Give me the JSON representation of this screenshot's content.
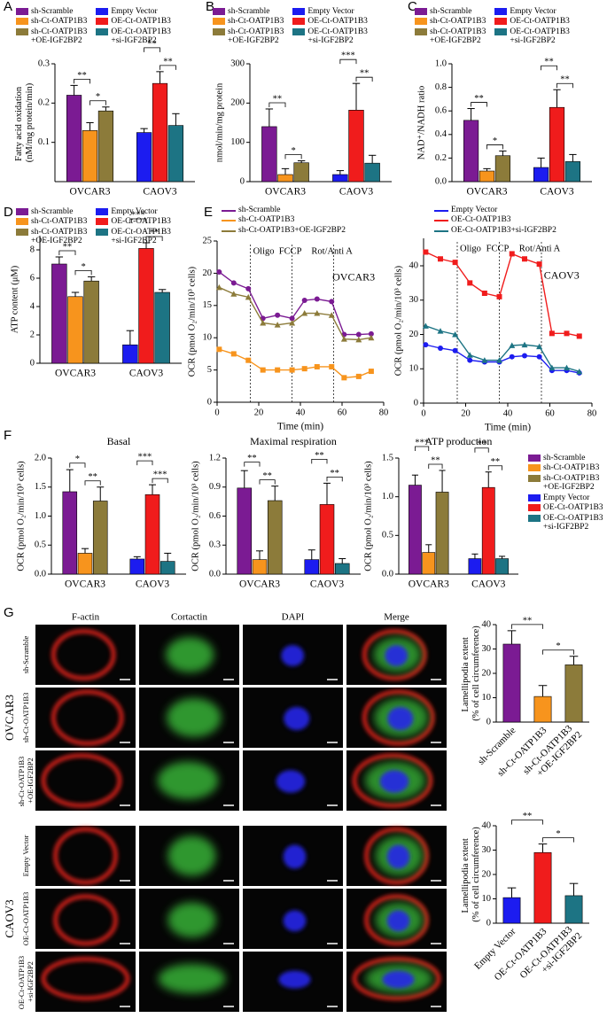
{
  "chart_data": [
    {
      "panel": "A",
      "type": "bar",
      "legend": "top",
      "ylabel": "Fatty acid oxidation\n(nM/mg protein/min)",
      "categories": [
        "OVCAR3",
        "CAOV3"
      ],
      "series": [
        {
          "name": "sh-Scramble",
          "color": "#7b1b93",
          "values": [
            0.22,
            null
          ],
          "errors": [
            0.025,
            null
          ]
        },
        {
          "name": "sh-Ct-OATP1B3",
          "color": "#f7941d",
          "values": [
            0.13,
            null
          ],
          "errors": [
            0.02,
            null
          ]
        },
        {
          "name": "sh-Ct-OATP1B3\n+OE-IGF2BP2",
          "color": "#8c7b3a",
          "values": [
            0.18,
            null
          ],
          "errors": [
            0.01,
            null
          ]
        },
        {
          "name": "Empty Vector",
          "color": "#1c1cf0",
          "values": [
            null,
            0.125
          ],
          "errors": [
            null,
            0.01
          ]
        },
        {
          "name": "OE-Ct-OATP1B3",
          "color": "#f01c1c",
          "values": [
            null,
            0.25
          ],
          "errors": [
            null,
            0.03
          ]
        },
        {
          "name": "OE-Ct-OATP1B3\n+si-IGF2BP2",
          "color": "#1d7484",
          "values": [
            null,
            0.143
          ],
          "errors": [
            null,
            0.03
          ]
        }
      ],
      "ylim": [
        0,
        0.3
      ],
      "yticks": [
        0.1,
        0.2,
        0.3
      ],
      "significance": [
        "**",
        "*",
        "**",
        "**"
      ]
    },
    {
      "panel": "B",
      "type": "bar",
      "legend": "top",
      "ylabel": "nmol/min/mg protein",
      "categories": [
        "OVCAR3",
        "CAOV3"
      ],
      "series": [
        {
          "name": "sh-Scramble",
          "color": "#7b1b93",
          "values": [
            140,
            null
          ],
          "errors": [
            45,
            null
          ]
        },
        {
          "name": "sh-Ct-OATP1B3",
          "color": "#f7941d",
          "values": [
            18,
            null
          ],
          "errors": [
            15,
            null
          ]
        },
        {
          "name": "sh-Ct-OATP1B3\n+OE-IGF2BP2",
          "color": "#8c7b3a",
          "values": [
            48,
            null
          ],
          "errors": [
            5,
            null
          ]
        },
        {
          "name": "Empty Vector",
          "color": "#1c1cf0",
          "values": [
            null,
            18
          ],
          "errors": [
            null,
            10
          ]
        },
        {
          "name": "OE-Ct-OATP1B3",
          "color": "#f01c1c",
          "values": [
            null,
            182
          ],
          "errors": [
            null,
            68
          ]
        },
        {
          "name": "OE-Ct-OATP1B3\n+si-IGF2BP2",
          "color": "#1d7484",
          "values": [
            null,
            47
          ],
          "errors": [
            null,
            20
          ]
        }
      ],
      "ylim": [
        0,
        300
      ],
      "yticks": [
        0,
        100,
        200,
        300
      ],
      "significance": [
        "**",
        "*",
        "***",
        "**"
      ]
    },
    {
      "panel": "C",
      "type": "bar",
      "legend": "top",
      "ylabel": "NAD⁺/NADH ratio",
      "categories": [
        "OVCAR3",
        "CAOV3"
      ],
      "series": [
        {
          "name": "sh-Scramble",
          "color": "#7b1b93",
          "values": [
            0.52,
            null
          ],
          "errors": [
            0.1,
            null
          ]
        },
        {
          "name": "sh-Ct-OATP1B3",
          "color": "#f7941d",
          "values": [
            0.09,
            null
          ],
          "errors": [
            0.02,
            null
          ]
        },
        {
          "name": "sh-Ct-OATP1B3\n+OE-IGF2BP2",
          "color": "#8c7b3a",
          "values": [
            0.22,
            null
          ],
          "errors": [
            0.04,
            null
          ]
        },
        {
          "name": "Empty Vector",
          "color": "#1c1cf0",
          "values": [
            null,
            0.12
          ],
          "errors": [
            null,
            0.08
          ]
        },
        {
          "name": "OE-Ct-OATP1B3",
          "color": "#f01c1c",
          "values": [
            null,
            0.63
          ],
          "errors": [
            null,
            0.15
          ]
        },
        {
          "name": "OE-Ct-OATP1B3\n+si-IGF2BP2",
          "color": "#1d7484",
          "values": [
            null,
            0.17
          ],
          "errors": [
            null,
            0.06
          ]
        }
      ],
      "ylim": [
        0,
        1.0
      ],
      "yticks": [
        {
          "value": 0,
          "label": "0.0"
        },
        0.2,
        0.4,
        0.6,
        0.8,
        {
          "value": 1,
          "label": "1.0"
        }
      ],
      "significance": [
        "**",
        "*",
        "**",
        "**"
      ]
    },
    {
      "panel": "D",
      "type": "bar",
      "legend": "top",
      "ylabel": "ATP content (μM)",
      "categories": [
        "OVCAR3",
        "CAOV3"
      ],
      "series": [
        {
          "name": "sh-Scramble",
          "color": "#7b1b93",
          "values": [
            7.0,
            null
          ],
          "errors": [
            0.5,
            null
          ]
        },
        {
          "name": "sh-Ct-OATP1B3",
          "color": "#f7941d",
          "values": [
            4.7,
            null
          ],
          "errors": [
            0.3,
            null
          ]
        },
        {
          "name": "sh-Ct-OATP1B3\n+OE-IGF2BP2",
          "color": "#8c7b3a",
          "values": [
            5.8,
            null
          ],
          "errors": [
            0.3,
            null
          ]
        },
        {
          "name": "Empty Vector",
          "color": "#1c1cf0",
          "values": [
            null,
            1.3
          ],
          "errors": [
            null,
            1.0
          ]
        },
        {
          "name": "OE-Ct-OATP1B3",
          "color": "#f01c1c",
          "values": [
            null,
            8.1
          ],
          "errors": [
            null,
            0.4
          ]
        },
        {
          "name": "OE-Ct-OATP1B3\n+si-IGF2BP2",
          "color": "#1d7484",
          "values": [
            null,
            5.0
          ],
          "errors": [
            null,
            0.2
          ]
        }
      ],
      "ylim": [
        0,
        9
      ],
      "yticks": [
        0,
        2,
        4,
        6,
        8
      ],
      "significance": [
        "**",
        "*",
        "***",
        "**"
      ]
    },
    {
      "panel": "E",
      "type": "line",
      "legend": "top",
      "xlabel": "Time (min)",
      "ylabel": "OCR (pmol O₂/min/10³ cells)",
      "annotation": "OVCAR3",
      "x": [
        1,
        8,
        15,
        22,
        29,
        36,
        42,
        48,
        55,
        61,
        68,
        74
      ],
      "series": [
        {
          "name": "sh-Scramble",
          "color": "#7b1b93",
          "marker": "circle",
          "values": [
            20.2,
            18.5,
            17.6,
            13,
            13.5,
            13,
            15.8,
            16,
            15.6,
            10.5,
            10.5,
            10.6
          ]
        },
        {
          "name": "sh-Ct-OATP1B3",
          "color": "#f7941d",
          "marker": "square",
          "values": [
            8.2,
            7.5,
            6.5,
            5,
            5,
            5,
            5.2,
            5.5,
            5.5,
            3.8,
            4,
            4.8
          ]
        },
        {
          "name": "sh-Ct-OATP1B3+OE-IGF2BP2",
          "color": "#8c7b3a",
          "marker": "triangle",
          "values": [
            17.8,
            16.8,
            16.3,
            12.3,
            12,
            12.3,
            13.8,
            13.8,
            13.5,
            9.8,
            9.7,
            10
          ]
        }
      ],
      "vlines": [
        {
          "x": 16,
          "label": "Oligo"
        },
        {
          "x": 36,
          "label": "FCCP"
        },
        {
          "x": 56,
          "label": "Rot/Anti A"
        }
      ],
      "xlim": [
        0,
        80
      ],
      "xticks": [
        0,
        20,
        40,
        60,
        80
      ],
      "ylim": [
        0,
        25
      ],
      "yticks": [
        0,
        5,
        10,
        15,
        20,
        25
      ]
    },
    {
      "type": "line",
      "legend": "top",
      "xlabel": "Time (min)",
      "ylabel": "OCR (pmol O₂/min/10³ cells)",
      "annotation": "CAOV3",
      "x": [
        1,
        8,
        15,
        22,
        29,
        36,
        42,
        48,
        55,
        61,
        68,
        74
      ],
      "series": [
        {
          "name": "Empty Vector",
          "color": "#1c1cf0",
          "marker": "circle",
          "values": [
            17,
            16,
            15.3,
            12.5,
            12,
            12,
            13.5,
            13.8,
            13.5,
            9.5,
            9.5,
            8.8
          ]
        },
        {
          "name": "OE-Ct-OATP1B3",
          "color": "#f01c1c",
          "marker": "square",
          "values": [
            44,
            42,
            41,
            35,
            32,
            31,
            43.5,
            42,
            40.5,
            20.3,
            20.3,
            19.5
          ]
        },
        {
          "name": "OE-Ct-OATP1B3+si-IGF2BP2",
          "color": "#1d7484",
          "marker": "triangle",
          "values": [
            22.5,
            21,
            20,
            14,
            12.5,
            12.5,
            16.8,
            17,
            16.5,
            10.3,
            10.3,
            9.2
          ]
        }
      ],
      "vlines": [
        {
          "x": 16,
          "label": "Oligo"
        },
        {
          "x": 36,
          "label": "FCCP"
        },
        {
          "x": 56,
          "label": "Rot/Anti A"
        }
      ],
      "xlim": [
        0,
        80
      ],
      "xticks": [
        0,
        20,
        40,
        60,
        80
      ],
      "ylim": [
        0,
        48
      ],
      "yticks": [
        0,
        10,
        20,
        30,
        40
      ]
    },
    {
      "panel": "F",
      "type": "bar",
      "title": "Basal",
      "ylabel": "OCR (pmol O₂/min/10³ cells)",
      "categories": [
        "OVCAR3",
        "CAOV3"
      ],
      "series": [
        {
          "color": "#7b1b93",
          "values": [
            1.42,
            null
          ],
          "errors": [
            0.38,
            null
          ]
        },
        {
          "color": "#f7941d",
          "values": [
            0.36,
            null
          ],
          "errors": [
            0.08,
            null
          ]
        },
        {
          "color": "#8c7b3a",
          "values": [
            1.26,
            null
          ],
          "errors": [
            0.24,
            null
          ]
        },
        {
          "color": "#1c1cf0",
          "values": [
            null,
            0.26
          ],
          "errors": [
            null,
            0.04
          ]
        },
        {
          "color": "#f01c1c",
          "values": [
            null,
            1.37
          ],
          "errors": [
            null,
            0.17
          ]
        },
        {
          "color": "#1d7484",
          "values": [
            null,
            0.22
          ],
          "errors": [
            null,
            0.14
          ]
        }
      ],
      "ylim": [
        0,
        2.0
      ],
      "yticks": [
        {
          "value": 0,
          "label": "0.0"
        },
        0.5,
        {
          "value": 1,
          "label": "1.0"
        },
        1.5,
        {
          "value": 2,
          "label": "2.0"
        }
      ],
      "significance": [
        "*",
        "**",
        "***",
        "***"
      ]
    },
    {
      "type": "bar",
      "title": "Maximal respiration",
      "ylabel": "OCR (pmol O₂/min/10³ cells)",
      "categories": [
        "OVCAR3",
        "CAOV3"
      ],
      "series": [
        {
          "color": "#7b1b93",
          "values": [
            0.89,
            null
          ],
          "errors": [
            0.18,
            null
          ]
        },
        {
          "color": "#f7941d",
          "values": [
            0.15,
            null
          ],
          "errors": [
            0.09,
            null
          ]
        },
        {
          "color": "#8c7b3a",
          "values": [
            0.76,
            null
          ],
          "errors": [
            0.15,
            null
          ]
        },
        {
          "color": "#1c1cf0",
          "values": [
            null,
            0.15
          ],
          "errors": [
            null,
            0.1
          ]
        },
        {
          "color": "#f01c1c",
          "values": [
            null,
            0.72
          ],
          "errors": [
            null,
            0.22
          ]
        },
        {
          "color": "#1d7484",
          "values": [
            null,
            0.11
          ],
          "errors": [
            null,
            0.05
          ]
        }
      ],
      "ylim": [
        0,
        1.2
      ],
      "yticks": [
        {
          "value": 0,
          "label": "0.0"
        },
        0.3,
        0.6,
        0.9,
        1.2
      ],
      "significance": [
        "**",
        "**",
        "**",
        "**"
      ]
    },
    {
      "type": "bar",
      "title": "ATP production",
      "legend": "right",
      "ylabel": "OCR (pmol O₂/min/10³ cells)",
      "categories": [
        "OVCAR3",
        "CAOV3"
      ],
      "series": [
        {
          "name": "sh-Scramble",
          "color": "#7b1b93",
          "values": [
            1.15,
            null
          ],
          "errors": [
            0.13,
            null
          ]
        },
        {
          "name": "sh-Ct-OATP1B3",
          "color": "#f7941d",
          "values": [
            0.28,
            null
          ],
          "errors": [
            0.1,
            null
          ]
        },
        {
          "name": "sh-Ct-OATP1B3\n+OE-IGF2BP2",
          "color": "#8c7b3a",
          "values": [
            1.06,
            null
          ],
          "errors": [
            0.28,
            null
          ]
        },
        {
          "name": "Empty Vector",
          "color": "#1c1cf0",
          "values": [
            null,
            0.2
          ],
          "errors": [
            null,
            0.06
          ]
        },
        {
          "name": "OE-Ct-OATP1B3",
          "color": "#f01c1c",
          "values": [
            null,
            1.12
          ],
          "errors": [
            null,
            0.2
          ]
        },
        {
          "name": "OE-Ct-OATP1B3\n+si-IGF2BP2",
          "color": "#1d7484",
          "values": [
            null,
            0.2
          ],
          "errors": [
            null,
            0.03
          ]
        }
      ],
      "ylim": [
        0,
        1.5
      ],
      "yticks": [
        {
          "value": 0,
          "label": "0.0"
        },
        0.5,
        {
          "value": 1,
          "label": "1.0"
        },
        1.5
      ],
      "significance": [
        "***",
        "**",
        "**",
        "**"
      ]
    },
    {
      "type": "bar",
      "ylabel": "Lamellipodia extent\n(% of cell circumference)",
      "categories": [
        "sh-Scramble",
        "sh-Ct-OATP1B3",
        "sh-Ct-OATP1B3\n+OE-IGF2BP2"
      ],
      "values": [
        32,
        10.5,
        23.5
      ],
      "errors": [
        5.5,
        4.5,
        3.5
      ],
      "colors": [
        "#7b1b93",
        "#f7941d",
        "#8c7b3a"
      ],
      "ylim": [
        0,
        40
      ],
      "yticks": [
        0,
        10,
        20,
        30,
        40
      ],
      "significance": [
        "**",
        "*"
      ]
    },
    {
      "type": "bar",
      "ylabel": "Lamellipodia extent\n(% of cell circumference)",
      "categories": [
        "Empty Vector",
        "OE-Ct-OATP1B3",
        "OE-Ct-OATP1B3\n+si-IGF2BP2"
      ],
      "values": [
        10.5,
        29,
        11.3
      ],
      "errors": [
        4,
        3.5,
        5
      ],
      "colors": [
        "#1c1cf0",
        "#f01c1c",
        "#1d7484"
      ],
      "ylim": [
        0,
        40
      ],
      "yticks": [
        0,
        10,
        20,
        30,
        40
      ],
      "significance": [
        "**",
        "*"
      ]
    }
  ],
  "microscopy": {
    "panel": "G",
    "columns": [
      "F-actin",
      "Cortactin",
      "DAPI",
      "Merge"
    ],
    "groups": [
      {
        "label": "OVCAR3",
        "rows": [
          "sh-Scramble",
          "sh-Ct-OATP1B3",
          "sh-Ct-OATP1B3\n+OE-IGF2BP2"
        ]
      },
      {
        "label": "CAOV3",
        "rows": [
          "Empty Vector",
          "OE-Ct-OATP1B3",
          "OE-Ct-OATP1B3\n+si-IGF2BP2"
        ]
      }
    ]
  }
}
